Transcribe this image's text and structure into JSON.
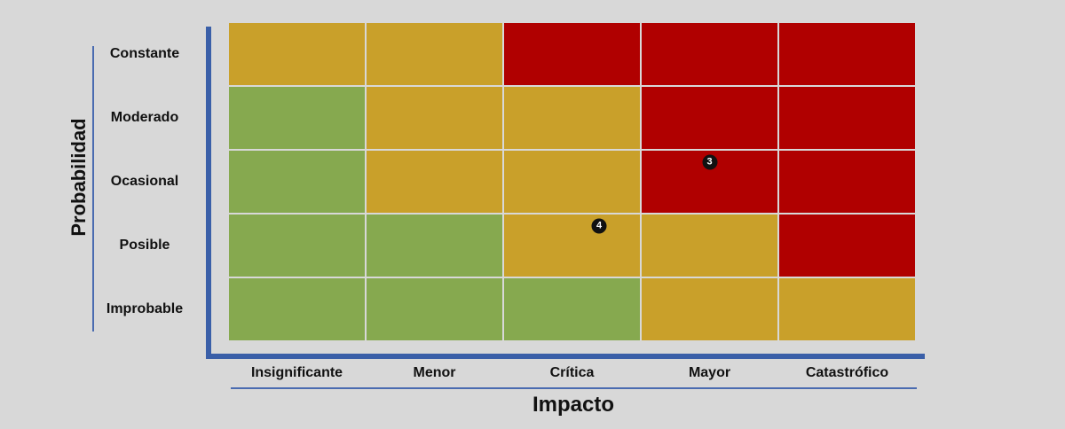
{
  "chart_data": {
    "type": "heatmap",
    "xlabel": "Impacto",
    "ylabel": "Probabilidad",
    "x_categories": [
      "Insignificante",
      "Menor",
      "Crítica",
      "Mayor",
      "Catastrófico"
    ],
    "y_categories": [
      "Constante",
      "Moderado",
      "Ocasional",
      "Posible",
      "Improbable"
    ],
    "colors": {
      "low": "#86a94f",
      "medium": "#c9a02a",
      "high": "#b00000"
    },
    "grid": [
      [
        "medium",
        "medium",
        "high",
        "high",
        "high"
      ],
      [
        "low",
        "medium",
        "medium",
        "high",
        "high"
      ],
      [
        "low",
        "medium",
        "medium",
        "high",
        "high"
      ],
      [
        "low",
        "low",
        "medium",
        "medium",
        "high"
      ],
      [
        "low",
        "low",
        "low",
        "medium",
        "medium"
      ]
    ],
    "markers": [
      {
        "label": "3",
        "x": "Mayor",
        "y": "Ocasional"
      },
      {
        "label": "4",
        "x": "Crítica",
        "y": "Posible"
      }
    ]
  }
}
